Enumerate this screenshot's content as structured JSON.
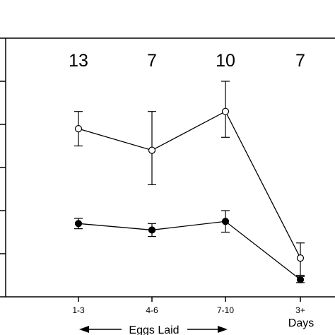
{
  "chart_data": {
    "type": "line",
    "categories": [
      "1-3",
      "4-6",
      "7-10",
      "3+"
    ],
    "sample_sizes": [
      "13",
      "7",
      "10",
      "7"
    ],
    "xlabel": "Eggs Laid",
    "xlabel_secondary": "Days",
    "ylim": [
      0,
      6
    ],
    "grid": false,
    "legend": "none",
    "series": [
      {
        "marker": "open-circle",
        "values": [
          3.9,
          3.4,
          4.3,
          0.9
        ],
        "error": [
          [
            0.4,
            0.4
          ],
          [
            0.8,
            0.9
          ],
          [
            0.6,
            0.7
          ],
          [
            0.4,
            0.35
          ]
        ]
      },
      {
        "marker": "filled-circle",
        "values": [
          1.7,
          1.55,
          1.75,
          0.4
        ],
        "error": [
          [
            0.12,
            0.12
          ],
          [
            0.15,
            0.15
          ],
          [
            0.25,
            0.25
          ],
          [
            0.07,
            0.07
          ]
        ]
      }
    ],
    "colors": {
      "line": "#000000",
      "open_fill": "#ffffff",
      "filled_fill": "#000000"
    }
  }
}
